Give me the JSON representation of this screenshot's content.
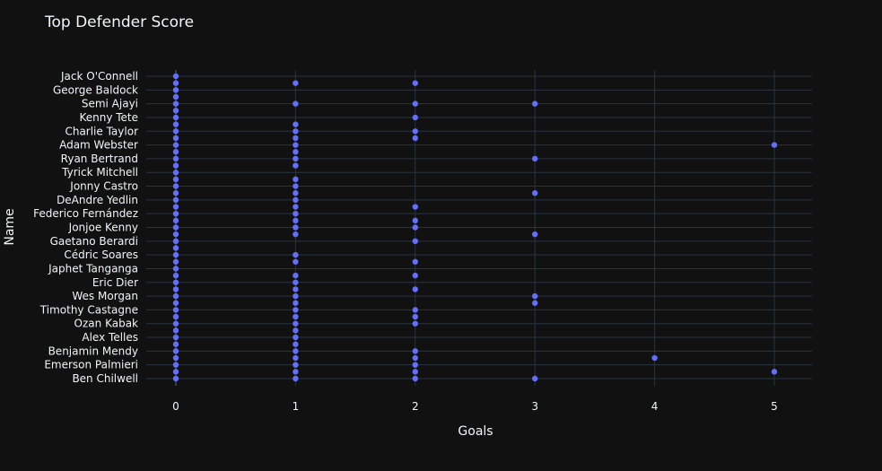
{
  "chart_data": {
    "type": "scatter",
    "title": "Top Defender Score",
    "xlabel": "Goals",
    "ylabel": "Name",
    "xlim": [
      -0.3,
      5.3
    ],
    "x_ticks": [
      0,
      1,
      2,
      3,
      4,
      5
    ],
    "grid": true,
    "legend": "none",
    "marker_color": "#636efa",
    "background": "#111111",
    "gridline_color": "#283442",
    "y_tick_labels": [
      "Jack O'Connell",
      "George Baldock",
      "Semi Ajayi",
      "Kenny Tete",
      "Charlie Taylor",
      "Adam Webster",
      "Ryan Bertrand",
      "Tyrick Mitchell",
      "Jonny Castro",
      "DeAndre Yedlin",
      "Federico Fernández",
      "Jonjoe Kenny",
      "Gaetano Berardi",
      "Cédric Soares",
      "Japhet Tanganga",
      "Eric Dier",
      "Wes Morgan",
      "Timothy Castagne",
      "Ozan Kabak",
      "Alex Telles",
      "Benjamin Mendy",
      "Emerson Palmieri",
      "Ben Chilwell"
    ],
    "category_count": 45,
    "tick_every": 2,
    "points": [
      {
        "row": 0,
        "x": 0
      },
      {
        "row": 1,
        "x": 0
      },
      {
        "row": 2,
        "x": 0
      },
      {
        "row": 3,
        "x": 0
      },
      {
        "row": 4,
        "x": 0
      },
      {
        "row": 5,
        "x": 0
      },
      {
        "row": 6,
        "x": 0
      },
      {
        "row": 7,
        "x": 0
      },
      {
        "row": 8,
        "x": 0
      },
      {
        "row": 9,
        "x": 0
      },
      {
        "row": 10,
        "x": 0
      },
      {
        "row": 11,
        "x": 0
      },
      {
        "row": 12,
        "x": 0
      },
      {
        "row": 13,
        "x": 0
      },
      {
        "row": 14,
        "x": 0
      },
      {
        "row": 15,
        "x": 0
      },
      {
        "row": 16,
        "x": 0
      },
      {
        "row": 17,
        "x": 0
      },
      {
        "row": 18,
        "x": 0
      },
      {
        "row": 19,
        "x": 0
      },
      {
        "row": 20,
        "x": 0
      },
      {
        "row": 21,
        "x": 0
      },
      {
        "row": 22,
        "x": 0
      },
      {
        "row": 23,
        "x": 0
      },
      {
        "row": 24,
        "x": 0
      },
      {
        "row": 25,
        "x": 0
      },
      {
        "row": 26,
        "x": 0
      },
      {
        "row": 27,
        "x": 0
      },
      {
        "row": 28,
        "x": 0
      },
      {
        "row": 29,
        "x": 0
      },
      {
        "row": 30,
        "x": 0
      },
      {
        "row": 31,
        "x": 0
      },
      {
        "row": 32,
        "x": 0
      },
      {
        "row": 33,
        "x": 0
      },
      {
        "row": 34,
        "x": 0
      },
      {
        "row": 35,
        "x": 0
      },
      {
        "row": 36,
        "x": 0
      },
      {
        "row": 37,
        "x": 0
      },
      {
        "row": 38,
        "x": 0
      },
      {
        "row": 39,
        "x": 0
      },
      {
        "row": 40,
        "x": 0
      },
      {
        "row": 41,
        "x": 0
      },
      {
        "row": 42,
        "x": 0
      },
      {
        "row": 43,
        "x": 0
      },
      {
        "row": 44,
        "x": 0
      },
      {
        "row": 1,
        "x": 1
      },
      {
        "row": 4,
        "x": 1
      },
      {
        "row": 7,
        "x": 1
      },
      {
        "row": 8,
        "x": 1
      },
      {
        "row": 9,
        "x": 1
      },
      {
        "row": 10,
        "x": 1
      },
      {
        "row": 11,
        "x": 1
      },
      {
        "row": 12,
        "x": 1
      },
      {
        "row": 13,
        "x": 1
      },
      {
        "row": 15,
        "x": 1
      },
      {
        "row": 16,
        "x": 1
      },
      {
        "row": 17,
        "x": 1
      },
      {
        "row": 18,
        "x": 1
      },
      {
        "row": 19,
        "x": 1
      },
      {
        "row": 20,
        "x": 1
      },
      {
        "row": 21,
        "x": 1
      },
      {
        "row": 22,
        "x": 1
      },
      {
        "row": 23,
        "x": 1
      },
      {
        "row": 26,
        "x": 1
      },
      {
        "row": 27,
        "x": 1
      },
      {
        "row": 29,
        "x": 1
      },
      {
        "row": 30,
        "x": 1
      },
      {
        "row": 31,
        "x": 1
      },
      {
        "row": 32,
        "x": 1
      },
      {
        "row": 33,
        "x": 1
      },
      {
        "row": 34,
        "x": 1
      },
      {
        "row": 35,
        "x": 1
      },
      {
        "row": 36,
        "x": 1
      },
      {
        "row": 37,
        "x": 1
      },
      {
        "row": 38,
        "x": 1
      },
      {
        "row": 39,
        "x": 1
      },
      {
        "row": 40,
        "x": 1
      },
      {
        "row": 41,
        "x": 1
      },
      {
        "row": 42,
        "x": 1
      },
      {
        "row": 43,
        "x": 1
      },
      {
        "row": 44,
        "x": 1
      },
      {
        "row": 1,
        "x": 2
      },
      {
        "row": 4,
        "x": 2
      },
      {
        "row": 6,
        "x": 2
      },
      {
        "row": 8,
        "x": 2
      },
      {
        "row": 9,
        "x": 2
      },
      {
        "row": 19,
        "x": 2
      },
      {
        "row": 21,
        "x": 2
      },
      {
        "row": 22,
        "x": 2
      },
      {
        "row": 24,
        "x": 2
      },
      {
        "row": 27,
        "x": 2
      },
      {
        "row": 29,
        "x": 2
      },
      {
        "row": 31,
        "x": 2
      },
      {
        "row": 34,
        "x": 2
      },
      {
        "row": 35,
        "x": 2
      },
      {
        "row": 36,
        "x": 2
      },
      {
        "row": 40,
        "x": 2
      },
      {
        "row": 41,
        "x": 2
      },
      {
        "row": 42,
        "x": 2
      },
      {
        "row": 43,
        "x": 2
      },
      {
        "row": 44,
        "x": 2
      },
      {
        "row": 4,
        "x": 3
      },
      {
        "row": 12,
        "x": 3
      },
      {
        "row": 17,
        "x": 3
      },
      {
        "row": 23,
        "x": 3
      },
      {
        "row": 32,
        "x": 3
      },
      {
        "row": 33,
        "x": 3
      },
      {
        "row": 44,
        "x": 3
      },
      {
        "row": 41,
        "x": 4
      },
      {
        "row": 10,
        "x": 5
      },
      {
        "row": 43,
        "x": 5
      }
    ]
  }
}
